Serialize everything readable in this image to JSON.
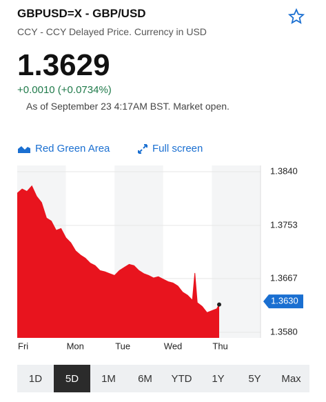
{
  "header": {
    "title": "GBPUSD=X - GBP/USD",
    "subtitle": "CCY - CCY Delayed Price. Currency in USD",
    "price": "1.3629",
    "change": "+0.0010 (+0.0734%)",
    "as_of": "As of September 23 4:17AM BST. Market open."
  },
  "toolbar": {
    "chart_style": "Red Green Area",
    "full_screen": "Full screen"
  },
  "chart_data": {
    "type": "area",
    "color": "#e8141e",
    "x": [
      0,
      0.1,
      0.2,
      0.3,
      0.4,
      0.5,
      0.6,
      0.7,
      0.8,
      0.9,
      1.0,
      1.1,
      1.2,
      1.3,
      1.4,
      1.5,
      1.6,
      1.7,
      1.8,
      1.9,
      2.0,
      2.1,
      2.2,
      2.3,
      2.4,
      2.5,
      2.6,
      2.7,
      2.8,
      2.9,
      3.0,
      3.1,
      3.2,
      3.3,
      3.4,
      3.5,
      3.6,
      3.65,
      3.7,
      3.8,
      3.9,
      4.0,
      4.1,
      4.15
    ],
    "series": [
      {
        "color": "#e8141e",
        "values": [
          1.3805,
          1.3812,
          1.3808,
          1.3817,
          1.38,
          1.379,
          1.3765,
          1.376,
          1.3745,
          1.3748,
          1.3733,
          1.3725,
          1.3712,
          1.3705,
          1.37,
          1.3692,
          1.3688,
          1.368,
          1.3678,
          1.3675,
          1.3672,
          1.368,
          1.3685,
          1.369,
          1.3688,
          1.368,
          1.3675,
          1.3672,
          1.3668,
          1.367,
          1.3666,
          1.3662,
          1.366,
          1.3655,
          1.3645,
          1.364,
          1.3632,
          1.3676,
          1.3628,
          1.3622,
          1.3612,
          1.3615,
          1.3618,
          1.3625
        ]
      }
    ],
    "xlim": [
      0,
      5
    ],
    "xticks": [
      {
        "value": 0,
        "label": "Fri"
      },
      {
        "value": 1,
        "label": "Mon"
      },
      {
        "value": 2,
        "label": "Tue"
      },
      {
        "value": 3,
        "label": "Wed"
      },
      {
        "value": 4,
        "label": "Thu"
      }
    ],
    "ylim": [
      1.3571,
      1.385
    ],
    "yticks": [
      {
        "value": 1.384,
        "label": "1.3840"
      },
      1.3753,
      1.3667,
      {
        "value": 1.358,
        "label": "1.3580"
      }
    ],
    "current": {
      "value": 1.363,
      "label": "1.3630"
    }
  },
  "ranges": {
    "items": [
      "1D",
      "5D",
      "1M",
      "6M",
      "YTD",
      "1Y",
      "5Y",
      "Max"
    ],
    "selected_index": 1
  }
}
